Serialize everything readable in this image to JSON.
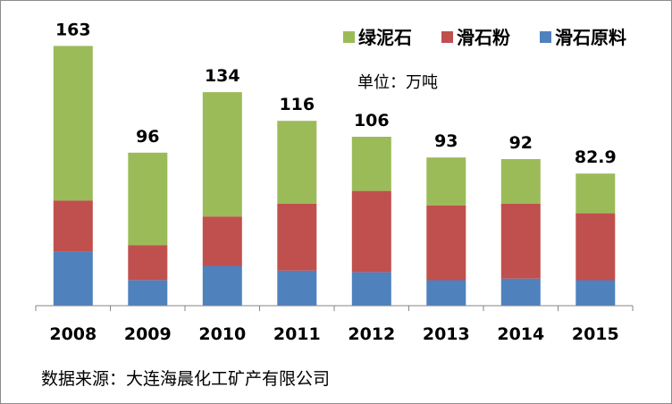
{
  "chart_data": {
    "type": "bar",
    "stacked": true,
    "categories": [
      "2008",
      "2009",
      "2010",
      "2011",
      "2012",
      "2013",
      "2014",
      "2015"
    ],
    "series": [
      {
        "name": "滑石原料",
        "color": "#4f81bd",
        "values": [
          34,
          16,
          25,
          22,
          21,
          16,
          17,
          16
        ]
      },
      {
        "name": "滑石粉",
        "color": "#c0504d",
        "values": [
          32,
          22,
          31,
          42,
          51,
          47,
          47,
          42
        ]
      },
      {
        "name": "绿泥石",
        "color": "#9bbb59",
        "values": [
          97,
          58,
          78,
          52,
          34,
          30,
          28,
          24.9
        ]
      }
    ],
    "totals": [
      "163",
      "96",
      "134",
      "116",
      "106",
      "93",
      "92",
      "82.9"
    ],
    "legend_order": [
      "绿泥石",
      "滑石粉",
      "滑石原料"
    ],
    "legend_position": "top-right",
    "unit_label": "单位：万吨",
    "ylim": [
      0,
      180
    ],
    "grid": false
  },
  "source_label": "数据来源：大连海晨化工矿产有限公司"
}
